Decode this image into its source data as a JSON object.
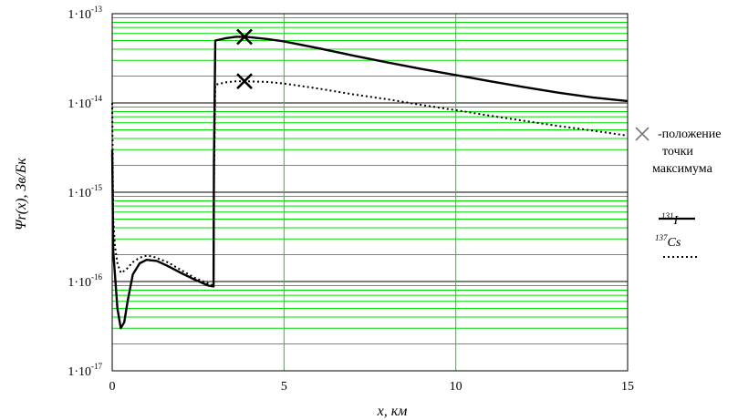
{
  "chart_data": {
    "type": "line",
    "scale_y": "log",
    "grid": true,
    "colors": {
      "background": "#ffffff",
      "minor_grid": "#00dd00",
      "major_grid_y": "#000000",
      "major_grid_x": "#00dd00",
      "series": "#000000"
    },
    "xlabel": "x, км",
    "ylabel": "Ψr(x), Зв/Бк",
    "xlim": [
      0,
      15
    ],
    "ylim": [
      1e-17,
      1e-13
    ],
    "x_ticks": [
      {
        "value": 0,
        "label": "0"
      },
      {
        "value": 5,
        "label": "5"
      },
      {
        "value": 10,
        "label": "10"
      },
      {
        "value": 15,
        "label": "15"
      }
    ],
    "y_ticks": [
      {
        "value": 1e-13,
        "mantissa": "1·10",
        "exp": "-13"
      },
      {
        "value": 1e-14,
        "mantissa": "1·10",
        "exp": "-14"
      },
      {
        "value": 1e-15,
        "mantissa": "1·10",
        "exp": "-15"
      },
      {
        "value": 1e-16,
        "mantissa": "1·10",
        "exp": "-16"
      },
      {
        "value": 1e-17,
        "mantissa": "1·10",
        "exp": "-17"
      }
    ],
    "series": [
      {
        "name": "131I",
        "style": "solid",
        "x": [
          0,
          0.03,
          0.08,
          0.15,
          0.25,
          0.35,
          0.45,
          0.6,
          0.8,
          1.0,
          1.3,
          1.6,
          2.0,
          2.4,
          2.8,
          2.95,
          2.96,
          3.0,
          3.3,
          3.6,
          3.9,
          4.5,
          5.0,
          6.0,
          7.0,
          8.0,
          9.0,
          10.0,
          11.0,
          12.0,
          13.0,
          14.0,
          15.0
        ],
        "y": [
          3e-15,
          2.2e-16,
          1.2e-16,
          5e-17,
          3e-17,
          3.5e-17,
          6e-17,
          1.2e-16,
          1.6e-16,
          1.75e-16,
          1.7e-16,
          1.5e-16,
          1.25e-16,
          1.05e-16,
          9e-17,
          8.8e-17,
          2e-15,
          5e-14,
          5.3e-14,
          5.5e-14,
          5.5e-14,
          5.2e-14,
          4.9e-14,
          4.1e-14,
          3.4e-14,
          2.85e-14,
          2.4e-14,
          2.05e-14,
          1.75e-14,
          1.5e-14,
          1.3e-14,
          1.15e-14,
          1.05e-14
        ]
      },
      {
        "name": "137Cs",
        "style": "dotted",
        "x": [
          0,
          0.03,
          0.08,
          0.15,
          0.25,
          0.4,
          0.6,
          0.8,
          1.0,
          1.2,
          1.6,
          2.0,
          2.4,
          2.8,
          2.95,
          2.96,
          3.0,
          3.3,
          3.6,
          3.9,
          4.5,
          5.0,
          6.0,
          7.0,
          8.0,
          9.0,
          10.0,
          11.0,
          12.0,
          13.0,
          14.0,
          15.0
        ],
        "y": [
          1e-14,
          5e-16,
          2.5e-16,
          1.6e-16,
          1.25e-16,
          1.35e-16,
          1.65e-16,
          1.85e-16,
          1.95e-16,
          1.9e-16,
          1.65e-16,
          1.35e-16,
          1.1e-16,
          9.5e-17,
          9e-17,
          1e-15,
          1.6e-14,
          1.7e-14,
          1.75e-14,
          1.75e-14,
          1.72e-14,
          1.65e-14,
          1.45e-14,
          1.25e-14,
          1.1e-14,
          9.5e-15,
          8.3e-15,
          7.2e-15,
          6.3e-15,
          5.5e-15,
          4.9e-15,
          4.3e-15
        ]
      }
    ],
    "maxima": [
      {
        "series": "131I",
        "x": 3.85,
        "y": 5.5e-14
      },
      {
        "series": "137Cs",
        "x": 3.85,
        "y": 1.75e-14
      }
    ],
    "legend": {
      "marker_text": [
        "-положение",
        "точки",
        "максимума"
      ],
      "items": [
        {
          "mass": "131",
          "element": "I",
          "style": "solid"
        },
        {
          "mass": "137",
          "element": "Cs",
          "style": "dotted"
        }
      ]
    }
  }
}
